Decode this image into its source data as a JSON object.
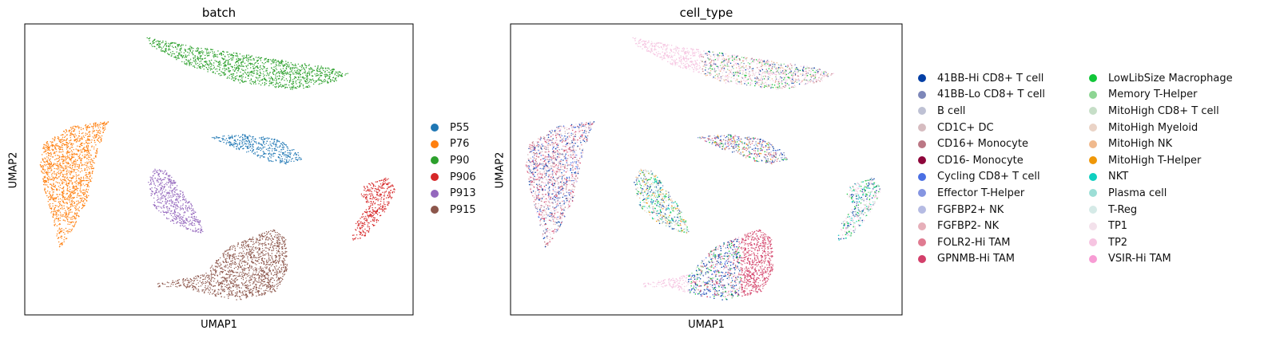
{
  "chart_data": [
    {
      "type": "scatter",
      "title": "batch",
      "xlabel": "UMAP1",
      "ylabel": "UMAP2",
      "legend_placement": "right",
      "grid": false,
      "ticks": false,
      "series": [
        {
          "name": "P55",
          "color": "#1f77b4"
        },
        {
          "name": "P76",
          "color": "#ff7f0e"
        },
        {
          "name": "P90",
          "color": "#2ca02c"
        },
        {
          "name": "P906",
          "color": "#d62728"
        },
        {
          "name": "P913",
          "color": "#9467bd"
        },
        {
          "name": "P915",
          "color": "#8c564b"
        }
      ]
    },
    {
      "type": "scatter",
      "title": "cell_type",
      "xlabel": "UMAP1",
      "ylabel": "UMAP2",
      "legend_placement": "right",
      "grid": false,
      "ticks": false,
      "series": [
        {
          "name": "41BB-Hi CD8+ T cell",
          "color": "#023fa5"
        },
        {
          "name": "41BB-Lo CD8+ T cell",
          "color": "#7d87b9"
        },
        {
          "name": "B cell",
          "color": "#bec1d4"
        },
        {
          "name": "CD1C+ DC",
          "color": "#d6bcc0"
        },
        {
          "name": "CD16+ Monocyte",
          "color": "#bb7784"
        },
        {
          "name": "CD16- Monocyte",
          "color": "#8e063b"
        },
        {
          "name": "Cycling CD8+ T cell",
          "color": "#4a6fe3"
        },
        {
          "name": "Effector T-Helper",
          "color": "#8595e1"
        },
        {
          "name": "FGFBP2+ NK",
          "color": "#b5bbe3"
        },
        {
          "name": "FGFBP2- NK",
          "color": "#e6afb9"
        },
        {
          "name": "FOLR2-Hi TAM",
          "color": "#e07b91"
        },
        {
          "name": "GPNMB-Hi TAM",
          "color": "#d33f6a"
        },
        {
          "name": "LowLibSize Macrophage",
          "color": "#11c638"
        },
        {
          "name": "Memory T-Helper",
          "color": "#8dd593"
        },
        {
          "name": "MitoHigh CD8+ T cell",
          "color": "#c6dec7"
        },
        {
          "name": "MitoHigh Myeloid",
          "color": "#ead3c6"
        },
        {
          "name": "MitoHigh NK",
          "color": "#f0b98d"
        },
        {
          "name": "MitoHigh T-Helper",
          "color": "#ef9708"
        },
        {
          "name": "NKT",
          "color": "#0fcfc0"
        },
        {
          "name": "Plasma cell",
          "color": "#9cded6"
        },
        {
          "name": "T-Reg",
          "color": "#d5eae7"
        },
        {
          "name": "TP1",
          "color": "#f3e1eb"
        },
        {
          "name": "TP2",
          "color": "#f6c4e1"
        },
        {
          "name": "VSIR-Hi TAM",
          "color": "#f79cd4"
        }
      ]
    }
  ]
}
